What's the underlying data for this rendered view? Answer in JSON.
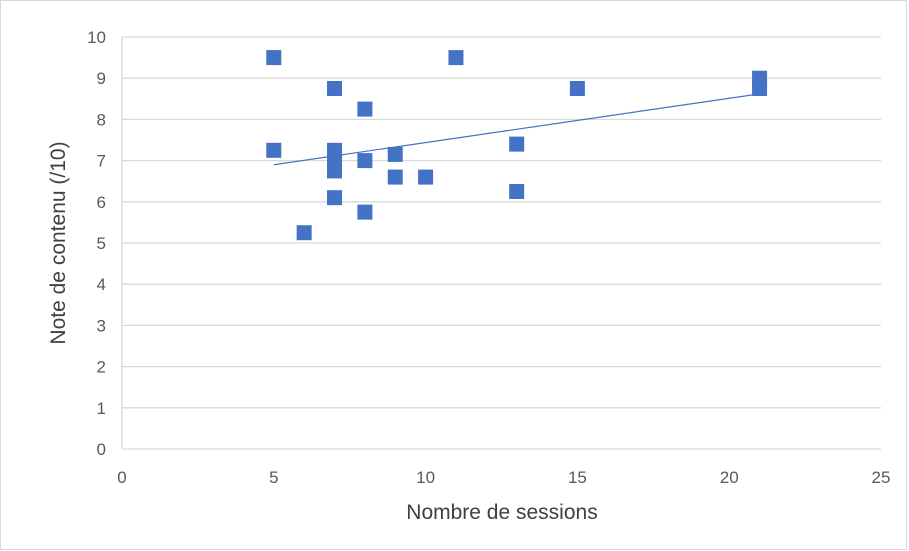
{
  "chart_data": {
    "type": "scatter",
    "title": "",
    "xlabel": "Nombre de sessions",
    "ylabel": "Note de contenu (/10)",
    "xlim": [
      0,
      25
    ],
    "ylim": [
      0,
      10
    ],
    "x_ticks": [
      "0",
      "5",
      "10",
      "15",
      "20",
      "25"
    ],
    "y_ticks": [
      "0",
      "1",
      "2",
      "3",
      "4",
      "5",
      "6",
      "7",
      "8",
      "9",
      "10"
    ],
    "grid": true,
    "legend": "none",
    "series": [
      {
        "color": "#4472c4",
        "marker": "square",
        "points": [
          {
            "x": 5,
            "y": 9.5
          },
          {
            "x": 5,
            "y": 7.25
          },
          {
            "x": 6,
            "y": 5.25
          },
          {
            "x": 7,
            "y": 8.75
          },
          {
            "x": 7,
            "y": 7.25
          },
          {
            "x": 7,
            "y": 7.0
          },
          {
            "x": 7,
            "y": 6.75
          },
          {
            "x": 7,
            "y": 6.1
          },
          {
            "x": 8,
            "y": 8.25
          },
          {
            "x": 8,
            "y": 7.0
          },
          {
            "x": 8,
            "y": 5.75
          },
          {
            "x": 9,
            "y": 7.15
          },
          {
            "x": 9,
            "y": 6.6
          },
          {
            "x": 10,
            "y": 6.6
          },
          {
            "x": 11,
            "y": 9.5
          },
          {
            "x": 13,
            "y": 7.4
          },
          {
            "x": 13,
            "y": 6.25
          },
          {
            "x": 15,
            "y": 8.75
          },
          {
            "x": 21,
            "y": 9.0
          },
          {
            "x": 21,
            "y": 8.75
          }
        ]
      }
    ],
    "trendline": {
      "type": "linear",
      "x": [
        5,
        21
      ],
      "y": [
        6.9,
        8.62
      ],
      "color": "#4472c4"
    }
  }
}
